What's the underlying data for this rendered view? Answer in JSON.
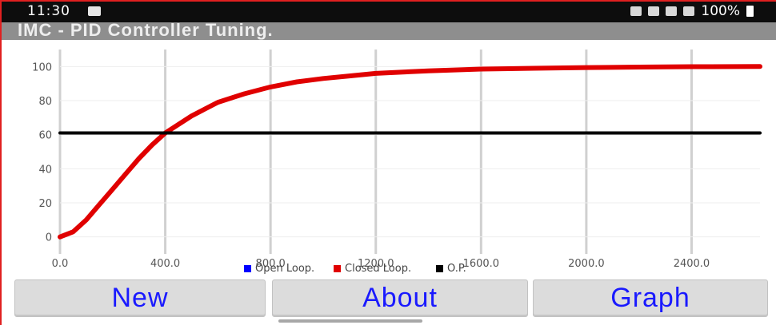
{
  "status_bar": {
    "time": "11:30",
    "battery": "100%"
  },
  "app": {
    "title": "IMC - PID Controller Tuning."
  },
  "chart_data": {
    "type": "line",
    "x_ticks": [
      "0.0",
      "400.0",
      "800.0",
      "1200.0",
      "1600.0",
      "2000.0",
      "2400.0"
    ],
    "y_ticks": [
      "0",
      "20",
      "40",
      "60",
      "80",
      "100"
    ],
    "xlim": [
      0,
      2660
    ],
    "ylim": [
      -10,
      110
    ],
    "grid": "vertical",
    "legend_position": "bottom",
    "series": [
      {
        "name": "Open Loop.",
        "color": "#0000ff",
        "points": []
      },
      {
        "name": "Closed Loop.",
        "color": "#e00000",
        "points": [
          [
            0,
            0
          ],
          [
            50,
            3
          ],
          [
            100,
            10
          ],
          [
            150,
            19
          ],
          [
            200,
            28
          ],
          [
            250,
            37
          ],
          [
            300,
            46
          ],
          [
            350,
            54
          ],
          [
            400,
            61
          ],
          [
            500,
            71
          ],
          [
            600,
            79
          ],
          [
            700,
            84
          ],
          [
            800,
            88
          ],
          [
            900,
            91
          ],
          [
            1000,
            93
          ],
          [
            1100,
            94.5
          ],
          [
            1200,
            96
          ],
          [
            1400,
            97.5
          ],
          [
            1600,
            98.5
          ],
          [
            1800,
            99
          ],
          [
            2000,
            99.4
          ],
          [
            2200,
            99.7
          ],
          [
            2400,
            99.9
          ],
          [
            2660,
            100
          ]
        ]
      },
      {
        "name": "O.P.",
        "color": "#000000",
        "points": [
          [
            0,
            61
          ],
          [
            2660,
            61
          ]
        ]
      }
    ]
  },
  "buttons": {
    "new": "New",
    "about": "About",
    "graph": "Graph"
  }
}
